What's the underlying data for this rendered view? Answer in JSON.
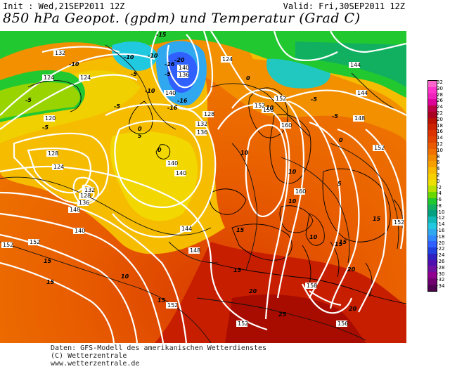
{
  "header": {
    "init": "Init : Wed,21SEP2011 12Z",
    "valid": "Valid: Fri,30SEP2011 12Z",
    "title": "850 hPa Geopot. (gpdm) und Temperatur (Grad C)"
  },
  "colorbar": {
    "labels": [
      "32",
      "30",
      "28",
      "26",
      "24",
      "22",
      "20",
      "18",
      "16",
      "14",
      "12",
      "10",
      "8",
      "6",
      "4",
      "2",
      "0",
      "-2",
      "-4",
      "-6",
      "-8",
      "-10",
      "-12",
      "-14",
      "-16",
      "-18",
      "-20",
      "-22",
      "-24",
      "-26",
      "-28",
      "-30",
      "-32",
      "-34"
    ],
    "colors": [
      "#ff66cc",
      "#ff33cc",
      "#ee22bb",
      "#dd0099",
      "#bb0044",
      "#aa0022",
      "#bb1100",
      "#cc2200",
      "#dd3300",
      "#e24400",
      "#ea5a00",
      "#f07000",
      "#f28a00",
      "#f6a000",
      "#f8bb00",
      "#f6d000",
      "#eee000",
      "#b8e000",
      "#6ad800",
      "#20c830",
      "#10b060",
      "#00a080",
      "#10b8b8",
      "#20c8e0",
      "#30a8f0",
      "#3088ff",
      "#3060ff",
      "#2040e0",
      "#3020c0",
      "#5010b0",
      "#7010a0",
      "#900090",
      "#700070",
      "#500050"
    ]
  },
  "map": {
    "geopotential_labels": [
      "132",
      "124",
      "124",
      "120",
      "128",
      "124",
      "128",
      "132",
      "136",
      "140",
      "148",
      "152",
      "140",
      "136",
      "140",
      "136",
      "132",
      "128",
      "140",
      "140",
      "144",
      "148",
      "152",
      "156",
      "160",
      "152",
      "160",
      "158",
      "156",
      "152",
      "152",
      "144",
      "148",
      "144",
      "124",
      "152",
      "152",
      "152"
    ],
    "temperature_labels": [
      "-10",
      "-5",
      "-15",
      "-20",
      "-16",
      "-10",
      "-5",
      "-5",
      "-5",
      "-10",
      "-5",
      "0",
      "0",
      "5",
      "10",
      "10",
      "10",
      "15",
      "15",
      "15",
      "10",
      "15",
      "15",
      "15",
      "20",
      "20",
      "25",
      "20",
      "15",
      "10",
      "15",
      "0",
      "-5",
      "10",
      "5",
      "0",
      "-5",
      "-10",
      "-16",
      "-16"
    ]
  },
  "footer": {
    "line1": "Daten: GFS-Modell des amerikanischen Wetterdienstes",
    "line2": "(C) Wetterzentrale",
    "line3": "www.wetterzentrale.de"
  }
}
